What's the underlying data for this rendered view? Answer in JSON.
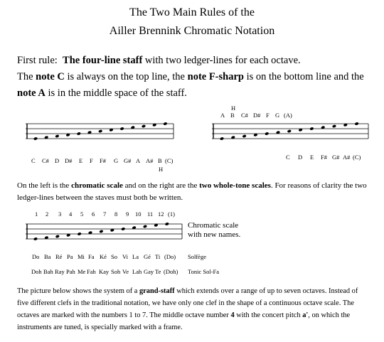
{
  "title": {
    "line1": "The Two Main Rules of the",
    "line2": "Ailler Brennink Chromatic Notation"
  },
  "first_rule": {
    "prefix": "First rule:",
    "bold": "The four-line staff",
    "suffix": " with two ledger-lines for each octave.",
    "line2_a": "The ",
    "line2_b": "note C",
    "line2_c": " is always on the top line, the ",
    "line2_d": "note F-sharp",
    "line2_e": " is on the bottom line and the",
    "line3_a": "note A",
    "line3_b": " is in the middle space of the staff."
  },
  "staff_left": {
    "labels": [
      "C",
      "C#",
      "D",
      "D#",
      "E",
      "F",
      "F#",
      "G",
      "G#",
      "A",
      "A#",
      "B",
      "(C)"
    ],
    "h_label": "H"
  },
  "staff_right": {
    "top_labels": [
      "A",
      "B",
      "C#",
      "D#",
      "F",
      "G",
      "(A)"
    ],
    "top_h": "H",
    "bottom_labels": [
      "C",
      "D",
      "E",
      "F#",
      "G#",
      "A#",
      "(C)"
    ]
  },
  "para2": {
    "a": "On the left is the ",
    "b": "chromatic scale",
    "c": " and on the right are the ",
    "d": "two whole-tone scales",
    "e": ". For reasons of clarity the two",
    "line2": "ledger-lines between the staves must both be written."
  },
  "chromatic_names": {
    "numbers": [
      "1",
      "2",
      "3",
      "4",
      "5",
      "6",
      "7",
      "8",
      "9",
      "10",
      "11",
      "12",
      "(1)"
    ],
    "caption1": "Chromatic scale",
    "caption2": "with new names.",
    "solfege": [
      "Do",
      "Ba",
      "Ré",
      "Pa",
      "Mi",
      "Fa",
      "Ké",
      "So",
      "Vi",
      "La",
      "Gé",
      "Ti",
      "(Do)"
    ],
    "solfege_label": "Solfège",
    "tonic": [
      "Doh",
      "Bah",
      "Ray",
      "Pah",
      "Me",
      "Fah",
      "Kay",
      "Soh",
      "Ve",
      "Lah",
      "Gay",
      "Te",
      "(Doh)"
    ],
    "tonic_label": "Tonic Sol-Fa"
  },
  "para3": {
    "l1a": "The picture below shows the system of a ",
    "l1b": "grand-staff",
    "l1c": " which extends over a range of up to seven octaves. Instead of",
    "l2": "five different clefs in the traditional notation, we have only one clef in the shape of a continuous octave scale. The",
    "l3a": "octaves are marked with the numbers 1 to 7. The middle octave number ",
    "l3b": "4",
    "l3c": " with the concert pitch ",
    "l3d": "a'",
    "l3e": ", on which the",
    "l4": "instruments are tuned, is specially marked with a frame."
  }
}
